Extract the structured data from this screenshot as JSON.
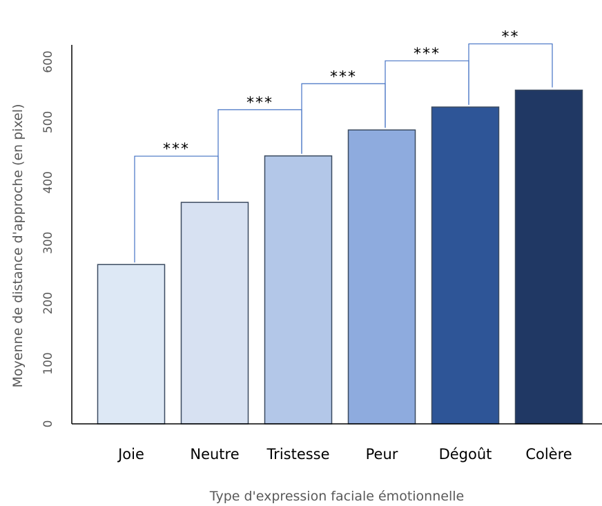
{
  "chart_data": {
    "type": "bar",
    "categories": [
      "Joie",
      "Neutre",
      "Tristesse",
      "Peur",
      "Dégoût",
      "Colère"
    ],
    "values": [
      264,
      367,
      444,
      487,
      525,
      553
    ],
    "colors": [
      "#dde8f5",
      "#d7e1f2",
      "#b3c7e8",
      "#8eabde",
      "#2e5597",
      "#203864"
    ],
    "bar_stroke": "#3a4a60",
    "bracket_color": "#4472c4",
    "xlabel": "Type d'expression faciale émotionnelle",
    "ylabel": "Moyenne de distance d'approche (en pixel)",
    "ylim": [
      0,
      628
    ],
    "yticks": [
      0,
      100,
      200,
      300,
      400,
      500,
      600
    ],
    "grid": false,
    "legend": "none",
    "annotations": [
      {
        "from": 0,
        "to": 1,
        "label": "***"
      },
      {
        "from": 1,
        "to": 2,
        "label": "***"
      },
      {
        "from": 2,
        "to": 3,
        "label": "***"
      },
      {
        "from": 3,
        "to": 4,
        "label": "***"
      },
      {
        "from": 4,
        "to": 5,
        "label": "**"
      }
    ]
  }
}
